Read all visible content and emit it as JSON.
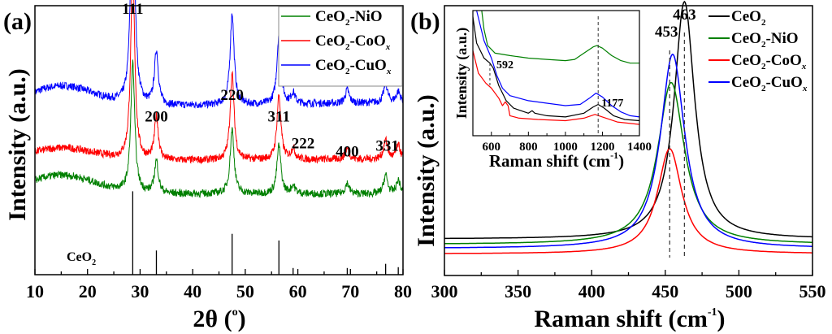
{
  "chart_data": [
    {
      "panel": "(a)",
      "type": "line",
      "title": "",
      "xlabel": "2θ (°)",
      "xlabel_main": "2θ (",
      "xlabel_sup": "o",
      "xlabel_close": ")",
      "ylabel": "Intensity (a.u.)",
      "xlim": [
        10,
        80
      ],
      "xticks": [
        10,
        20,
        30,
        40,
        50,
        60,
        70,
        80
      ],
      "grid": false,
      "legend": {
        "placement": "top-right",
        "entries": [
          {
            "label_base": "CeO",
            "label_sub": "2",
            "label_rest": "-NiO",
            "label_subx": "",
            "color": "#008000"
          },
          {
            "label_base": "CeO",
            "label_sub": "2",
            "label_rest": "-CoO",
            "label_subx": "x",
            "color": "#ff0000"
          },
          {
            "label_base": "CeO",
            "label_sub": "2",
            "label_rest": "-CuO",
            "label_subx": "x",
            "color": "#0000ff"
          }
        ]
      },
      "series": [
        {
          "name": "CeO2-CuOx",
          "color": "#0000ff",
          "offset": 0.62,
          "bg_start": 0.08,
          "bg_end": 0.02,
          "peaks": [
            {
              "x": 28.6,
              "h": 0.88
            },
            {
              "x": 33.1,
              "h": 0.2
            },
            {
              "x": 47.5,
              "h": 0.34
            },
            {
              "x": 56.4,
              "h": 0.26
            },
            {
              "x": 59.1,
              "h": 0.04
            },
            {
              "x": 69.4,
              "h": 0.05
            },
            {
              "x": 76.7,
              "h": 0.07
            },
            {
              "x": 79.1,
              "h": 0.04
            }
          ]
        },
        {
          "name": "CeO2-CoOx",
          "color": "#ff0000",
          "offset": 0.42,
          "bg_start": 0.05,
          "bg_end": 0.01,
          "peaks": [
            {
              "x": 28.6,
              "h": 0.72
            },
            {
              "x": 33.1,
              "h": 0.16
            },
            {
              "x": 47.5,
              "h": 0.32
            },
            {
              "x": 56.4,
              "h": 0.24
            },
            {
              "x": 59.1,
              "h": 0.04
            },
            {
              "x": 69.4,
              "h": 0.04
            },
            {
              "x": 76.7,
              "h": 0.07
            },
            {
              "x": 79.1,
              "h": 0.05
            }
          ]
        },
        {
          "name": "CeO2-NiO",
          "color": "#008000",
          "offset": 0.3,
          "bg_start": 0.07,
          "bg_end": 0.0,
          "peaks": [
            {
              "x": 28.6,
              "h": 0.48
            },
            {
              "x": 33.1,
              "h": 0.12
            },
            {
              "x": 47.5,
              "h": 0.24
            },
            {
              "x": 56.4,
              "h": 0.18
            },
            {
              "x": 59.1,
              "h": 0.03
            },
            {
              "x": 69.4,
              "h": 0.04
            },
            {
              "x": 76.7,
              "h": 0.07
            },
            {
              "x": 79.1,
              "h": 0.05
            }
          ]
        }
      ],
      "reference": {
        "label_base": "CeO",
        "label_sub": "2",
        "lines": [
          {
            "x": 28.6,
            "h": 1.0
          },
          {
            "x": 33.1,
            "h": 0.29
          },
          {
            "x": 47.5,
            "h": 0.49
          },
          {
            "x": 56.4,
            "h": 0.41
          },
          {
            "x": 59.1,
            "h": 0.08
          },
          {
            "x": 69.4,
            "h": 0.08
          },
          {
            "x": 76.7,
            "h": 0.13
          },
          {
            "x": 79.1,
            "h": 0.09
          }
        ]
      },
      "annotations": [
        {
          "text": "111",
          "x": 28.6,
          "y": 0.97
        },
        {
          "text": "200",
          "x": 33.1,
          "y": 0.57
        },
        {
          "text": "220",
          "x": 47.5,
          "y": 0.65
        },
        {
          "text": "311",
          "x": 56.4,
          "y": 0.57
        },
        {
          "text": "222",
          "x": 61.0,
          "y": 0.47
        },
        {
          "text": "400",
          "x": 69.4,
          "y": 0.44
        },
        {
          "text": "331",
          "x": 77.0,
          "y": 0.46
        }
      ]
    },
    {
      "panel": "(b)",
      "type": "line",
      "title": "",
      "xlabel": "Raman shift (cm⁻¹)",
      "xlabel_main": "Raman shift (cm",
      "xlabel_sup": "-1",
      "xlabel_close": ")",
      "ylabel": "Intensity (a.u.)",
      "xlim": [
        300,
        550
      ],
      "xticks": [
        300,
        350,
        400,
        450,
        500,
        550
      ],
      "grid": false,
      "legend": {
        "placement": "top-right",
        "entries": [
          {
            "label_base": "CeO",
            "label_sub": "2",
            "label_rest": "",
            "label_subx": "",
            "color": "#000000"
          },
          {
            "label_base": "CeO",
            "label_sub": "2",
            "label_rest": "-NiO",
            "label_subx": "",
            "color": "#008000"
          },
          {
            "label_base": "CeO",
            "label_sub": "2",
            "label_rest": "-CoO",
            "label_subx": "x",
            "color": "#ff0000"
          },
          {
            "label_base": "CeO",
            "label_sub": "2",
            "label_rest": "-CuO",
            "label_subx": "x",
            "color": "#0000ff"
          }
        ]
      },
      "series": [
        {
          "name": "CeO2",
          "color": "#000000",
          "center": 463,
          "height": 0.88,
          "width": 8.5,
          "base": 0.135
        },
        {
          "name": "CeO2-NiO",
          "color": "#008000",
          "center": 454,
          "height": 0.6,
          "width": 11,
          "base": 0.115
        },
        {
          "name": "CeO2-CoOx",
          "color": "#ff0000",
          "center": 453,
          "height": 0.39,
          "width": 10,
          "base": 0.08
        },
        {
          "name": "CeO2-CuOx",
          "color": "#0000ff",
          "center": 455,
          "height": 0.72,
          "width": 10,
          "base": 0.1
        }
      ],
      "annotations": [
        {
          "text": "453",
          "x": 453
        },
        {
          "text": "463",
          "x": 463
        }
      ],
      "inset": {
        "xlabel_main": "Raman shift (cm",
        "xlabel_sup": "-1",
        "xlabel_close": ")",
        "ylabel": "Intensity (a.u.)",
        "xlim": [
          500,
          1400
        ],
        "xticks": [
          600,
          800,
          1000,
          1200,
          1400
        ],
        "annotations": [
          {
            "text": "592",
            "x": 592
          },
          {
            "text": "1177",
            "x": 1177
          }
        ],
        "series": [
          {
            "name": "CeO2-NiO",
            "color": "#008000",
            "points": [
              [
                548,
                1.0
              ],
              [
                560,
                0.85
              ],
              [
                580,
                0.72
              ],
              [
                620,
                0.66
              ],
              [
                700,
                0.64
              ],
              [
                800,
                0.62
              ],
              [
                900,
                0.61
              ],
              [
                1000,
                0.6
              ],
              [
                1050,
                0.61
              ],
              [
                1100,
                0.66
              ],
              [
                1150,
                0.71
              ],
              [
                1170,
                0.72
              ],
              [
                1200,
                0.7
              ],
              [
                1250,
                0.64
              ],
              [
                1300,
                0.6
              ],
              [
                1350,
                0.58
              ],
              [
                1400,
                0.58
              ]
            ]
          },
          {
            "name": "CeO2-CuOx",
            "color": "#0000ff",
            "points": [
              [
                520,
                1.0
              ],
              [
                560,
                0.76
              ],
              [
                600,
                0.62
              ],
              [
                630,
                0.48
              ],
              [
                660,
                0.38
              ],
              [
                700,
                0.32
              ],
              [
                800,
                0.28
              ],
              [
                900,
                0.26
              ],
              [
                1000,
                0.24
              ],
              [
                1080,
                0.25
              ],
              [
                1130,
                0.3
              ],
              [
                1165,
                0.34
              ],
              [
                1200,
                0.31
              ],
              [
                1250,
                0.24
              ],
              [
                1300,
                0.19
              ],
              [
                1350,
                0.16
              ],
              [
                1400,
                0.15
              ]
            ]
          },
          {
            "name": "CeO2",
            "color": "#000000",
            "points": [
              [
                500,
                0.95
              ],
              [
                520,
                0.74
              ],
              [
                560,
                0.62
              ],
              [
                592,
                0.58
              ],
              [
                610,
                0.54
              ],
              [
                640,
                0.4
              ],
              [
                680,
                0.28
              ],
              [
                720,
                0.22
              ],
              [
                800,
                0.18
              ],
              [
                820,
                0.2
              ],
              [
                835,
                0.18
              ],
              [
                900,
                0.16
              ],
              [
                1000,
                0.15
              ],
              [
                1100,
                0.18
              ],
              [
                1150,
                0.23
              ],
              [
                1177,
                0.25
              ],
              [
                1210,
                0.22
              ],
              [
                1260,
                0.16
              ],
              [
                1320,
                0.13
              ],
              [
                1400,
                0.12
              ]
            ]
          },
          {
            "name": "CeO2-CoOx",
            "color": "#ff0000",
            "points": [
              [
                500,
                0.68
              ],
              [
                530,
                0.5
              ],
              [
                570,
                0.42
              ],
              [
                600,
                0.38
              ],
              [
                640,
                0.3
              ],
              [
                660,
                0.24
              ],
              [
                675,
                0.27
              ],
              [
                690,
                0.24
              ],
              [
                700,
                0.16
              ],
              [
                750,
                0.14
              ],
              [
                850,
                0.13
              ],
              [
                1000,
                0.12
              ],
              [
                1100,
                0.14
              ],
              [
                1160,
                0.17
              ],
              [
                1200,
                0.15
              ],
              [
                1280,
                0.11
              ],
              [
                1400,
                0.09
              ]
            ]
          }
        ]
      }
    }
  ]
}
